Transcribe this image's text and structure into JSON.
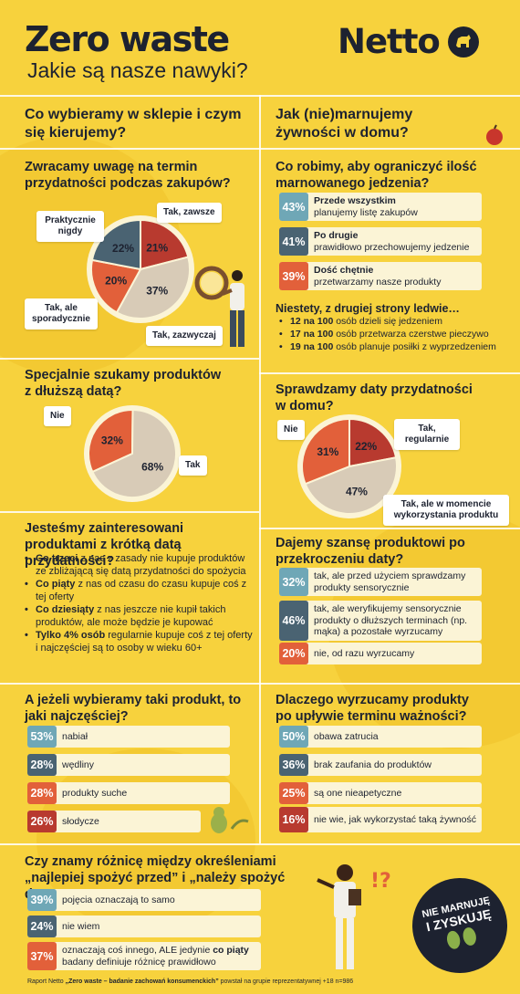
{
  "header": {
    "title": "Zero waste",
    "subtitle": "Jakie są nasze nawyki?",
    "brand": "Netto"
  },
  "left_col": {
    "heading": "Co wybieramy w sklepie i czym się kierujemy?",
    "expiry_check": {
      "title": "Zwracamy uwagę na termin przydatności podczas zakupów?",
      "slices": [
        {
          "label": "Tak, zawsze",
          "value": 21,
          "display": "21%",
          "color": "#b83a2f"
        },
        {
          "label": "Tak, zazwyczaj",
          "value": 37,
          "display": "37%",
          "color": "#d8cbb7"
        },
        {
          "label": "Tak, ale sporadycznie",
          "value": 20,
          "display": "20%",
          "color": "#e2603a"
        },
        {
          "label": "Praktycznie nigdy",
          "value": 22,
          "display": "22%",
          "color": "#4a6372"
        }
      ]
    },
    "long_date": {
      "title": "Specjalnie szukamy produktów z dłuższą datą?",
      "slices": [
        {
          "label": "Tak",
          "value": 68,
          "display": "68%",
          "color": "#d8cbb7"
        },
        {
          "label": "Nie",
          "value": 32,
          "display": "32%",
          "color": "#e2603a"
        }
      ]
    },
    "short_date": {
      "title": "Jesteśmy zainteresowani produktami z krótką datą przydatności?",
      "bullets": [
        {
          "bold": "Co trzeci",
          "text": " z nas z zasady nie kupuje produktów ze zbliżającą się datą przydatności do spożycia"
        },
        {
          "bold": "Co piąty",
          "text": " z nas od czasu do czasu kupuje coś z tej oferty"
        },
        {
          "bold": "Co dziesiąty",
          "text": " z nas jeszcze nie kupił takich produktów, ale może będzie je kupować"
        },
        {
          "bold": "Tylko 4% osób",
          "text": " regularnie kupuje coś z tej oferty i najczęściej są to osoby w wieku 60+"
        }
      ]
    },
    "products": {
      "title": "A jeżeli wybieramy taki produkt, to jaki najczęściej?",
      "rows": [
        {
          "pct": "53%",
          "label": "nabiał",
          "color": "#6fa7b6"
        },
        {
          "pct": "28%",
          "label": "wędliny",
          "color": "#4a6372"
        },
        {
          "pct": "28%",
          "label": "produkty suche",
          "color": "#e2603a"
        },
        {
          "pct": "26%",
          "label": "słodycze",
          "color": "#b83a2f"
        }
      ]
    }
  },
  "right_col": {
    "heading": "Jak (nie)marnujemy żywności w domu?",
    "reduce": {
      "title": "Co robimy, aby ograniczyć ilość marnowanego jedzenia?",
      "rows": [
        {
          "pct": "43%",
          "bold": "Przede wszystkim",
          "text": "planujemy listę zakupów",
          "color": "#6fa7b6"
        },
        {
          "pct": "41%",
          "bold": "Po drugie",
          "text": "prawidłowo przechowujemy jedzenie",
          "color": "#4a6372"
        },
        {
          "pct": "39%",
          "bold": "Dość chętnie",
          "text": "przetwarzamy nasze produkty",
          "color": "#e2603a"
        }
      ],
      "sub_title": "Niestety, z drugiej strony ledwie…",
      "bullets": [
        {
          "bold": "12 na 100",
          "text": " osób dzieli się jedzeniem"
        },
        {
          "bold": "17 na 100",
          "text": " osób przetwarza czerstwe pieczywo"
        },
        {
          "bold": "19 na 100",
          "text": " osób planuje posiłki z wyprzedzeniem"
        }
      ]
    },
    "home_check": {
      "title": "Sprawdzamy daty przydatności w domu?",
      "slices": [
        {
          "label": "Tak, regularnie",
          "value": 22,
          "display": "22%",
          "color": "#b83a2f"
        },
        {
          "label": "Tak, ale w momencie wykorzystania produktu",
          "value": 47,
          "display": "47%",
          "color": "#d8cbb7"
        },
        {
          "label": "Nie",
          "value": 31,
          "display": "31%",
          "color": "#e2603a"
        }
      ]
    },
    "second_chance": {
      "title": "Dajemy szansę produktowi po przekroczeniu daty?",
      "rows": [
        {
          "pct": "32%",
          "text": "tak, ale przed użyciem sprawdzamy produkty sensorycznie",
          "color": "#6fa7b6"
        },
        {
          "pct": "46%",
          "text": "tak, ale weryfikujemy sensorycznie produkty o dłuższych terminach (np. mąka) a pozostałe wyrzucamy",
          "color": "#4a6372"
        },
        {
          "pct": "20%",
          "text": "nie, od razu wyrzucamy",
          "color": "#e2603a"
        }
      ]
    },
    "why_throw": {
      "title": "Dlaczego wyrzucamy produkty po upływie terminu ważności?",
      "rows": [
        {
          "pct": "50%",
          "text": "obawa zatrucia",
          "color": "#6fa7b6"
        },
        {
          "pct": "36%",
          "text": "brak zaufania do produktów",
          "color": "#4a6372"
        },
        {
          "pct": "25%",
          "text": "są one nieapetyczne",
          "color": "#e2603a"
        },
        {
          "pct": "16%",
          "text": "nie wie, jak wykorzystać taką żywność",
          "color": "#b83a2f"
        }
      ]
    }
  },
  "bottom": {
    "title": "Czy znamy różnicę między określeniami „najlepiej spożyć przed” i „należy spożyć do”?",
    "rows": [
      {
        "pct": "39%",
        "text": "pojęcia oznaczają to samo",
        "color": "#6fa7b6"
      },
      {
        "pct": "24%",
        "text": "nie wiem",
        "color": "#4a6372"
      },
      {
        "pct": "37%",
        "text_pre": "oznaczają coś innego, ALE jedynie ",
        "text_bold": "co piąty",
        "text_post": " badany definiuje różnicę prawidłowo",
        "color": "#e2603a"
      }
    ],
    "badge_line1": "NIE MARNUJĘ",
    "badge_line2": "I ZYSKUJĘ",
    "footer_pre": "Raport Netto ",
    "footer_bold": "„Zero waste – badanie zachowań konsumenckich”",
    "footer_post": " powstał na grupie reprezentatywnej +18 n=986"
  }
}
